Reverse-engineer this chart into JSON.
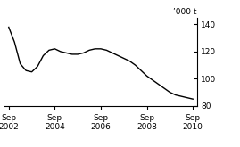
{
  "title": "",
  "ylabel": "’000 t",
  "ylim": [
    80,
    145
  ],
  "yticks": [
    80,
    100,
    120,
    140
  ],
  "xlim": [
    2002.58,
    2010.92
  ],
  "xticks": [
    2002.75,
    2004.75,
    2006.75,
    2008.75,
    2010.75
  ],
  "xticklabels": [
    "Sep\n2002",
    "Sep\n2004",
    "Sep\n2006",
    "Sep\n2008",
    "Sep\n2010"
  ],
  "line_color": "#000000",
  "line_width": 1.0,
  "x": [
    2002.75,
    2003.0,
    2003.25,
    2003.5,
    2003.75,
    2004.0,
    2004.25,
    2004.5,
    2004.75,
    2005.0,
    2005.25,
    2005.5,
    2005.75,
    2006.0,
    2006.25,
    2006.5,
    2006.75,
    2007.0,
    2007.25,
    2007.5,
    2007.75,
    2008.0,
    2008.25,
    2008.5,
    2008.75,
    2009.0,
    2009.25,
    2009.5,
    2009.75,
    2010.0,
    2010.25,
    2010.5,
    2010.75
  ],
  "y": [
    138,
    127,
    111,
    106,
    105,
    109,
    117,
    121,
    122,
    120,
    119,
    118,
    118,
    119,
    121,
    122,
    122,
    121,
    119,
    117,
    115,
    113,
    110,
    106,
    102,
    99,
    96,
    93,
    90,
    88,
    87,
    86,
    85
  ]
}
